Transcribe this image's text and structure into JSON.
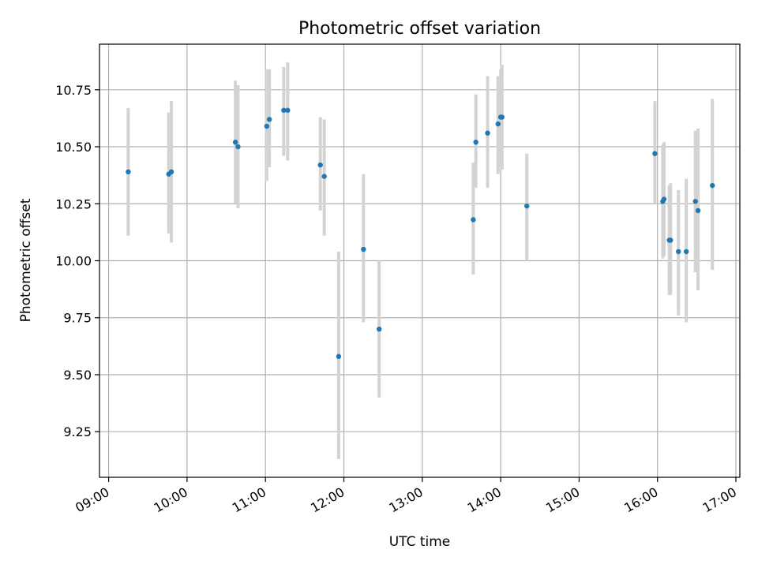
{
  "chart_data": {
    "type": "scatter",
    "title": "Photometric offset variation",
    "xlabel": "UTC time",
    "ylabel": "Photometric offset",
    "xlim": [
      "08:53",
      "17:03"
    ],
    "ylim": [
      9.05,
      10.95
    ],
    "x_ticks": [
      "09:00",
      "10:00",
      "11:00",
      "12:00",
      "13:00",
      "14:00",
      "15:00",
      "16:00",
      "17:00"
    ],
    "y_ticks": [
      9.25,
      9.5,
      9.75,
      10.0,
      10.25,
      10.5,
      10.75
    ],
    "y_tick_labels": [
      "9.25",
      "9.50",
      "9.75",
      "10.00",
      "10.25",
      "10.50",
      "10.75"
    ],
    "grid": true,
    "marker_color": "#1f77b4",
    "errorbar_color": "#d3d3d3",
    "series": [
      {
        "points": [
          {
            "t": "09:15",
            "y": 10.39,
            "lo": 10.11,
            "hi": 10.67
          },
          {
            "t": "09:46",
            "y": 10.38,
            "lo": 10.12,
            "hi": 10.65
          },
          {
            "t": "09:48",
            "y": 10.39,
            "lo": 10.08,
            "hi": 10.7
          },
          {
            "t": "10:37",
            "y": 10.52,
            "lo": 10.25,
            "hi": 10.79
          },
          {
            "t": "10:39",
            "y": 10.5,
            "lo": 10.23,
            "hi": 10.77
          },
          {
            "t": "11:01",
            "y": 10.59,
            "lo": 10.35,
            "hi": 10.84
          },
          {
            "t": "11:03",
            "y": 10.62,
            "lo": 10.41,
            "hi": 10.84
          },
          {
            "t": "11:14",
            "y": 10.66,
            "lo": 10.46,
            "hi": 10.85
          },
          {
            "t": "11:17",
            "y": 10.66,
            "lo": 10.44,
            "hi": 10.87
          },
          {
            "t": "11:42",
            "y": 10.42,
            "lo": 10.22,
            "hi": 10.63
          },
          {
            "t": "11:45",
            "y": 10.37,
            "lo": 10.11,
            "hi": 10.62
          },
          {
            "t": "11:56",
            "y": 9.58,
            "lo": 9.13,
            "hi": 10.04
          },
          {
            "t": "12:15",
            "y": 10.05,
            "lo": 9.73,
            "hi": 10.38
          },
          {
            "t": "12:27",
            "y": 9.7,
            "lo": 9.4,
            "hi": 10.0
          },
          {
            "t": "13:39",
            "y": 10.18,
            "lo": 9.94,
            "hi": 10.43
          },
          {
            "t": "13:41",
            "y": 10.52,
            "lo": 10.32,
            "hi": 10.73
          },
          {
            "t": "13:50",
            "y": 10.56,
            "lo": 10.32,
            "hi": 10.81
          },
          {
            "t": "13:58",
            "y": 10.6,
            "lo": 10.38,
            "hi": 10.81
          },
          {
            "t": "14:00",
            "y": 10.63,
            "lo": 10.41,
            "hi": 10.84
          },
          {
            "t": "14:01",
            "y": 10.63,
            "lo": 10.4,
            "hi": 10.86
          },
          {
            "t": "14:20",
            "y": 10.24,
            "lo": 10.0,
            "hi": 10.47
          },
          {
            "t": "15:58",
            "y": 10.47,
            "lo": 10.25,
            "hi": 10.7
          },
          {
            "t": "16:04",
            "y": 10.26,
            "lo": 10.01,
            "hi": 10.51
          },
          {
            "t": "16:05",
            "y": 10.27,
            "lo": 10.02,
            "hi": 10.52
          },
          {
            "t": "16:09",
            "y": 10.09,
            "lo": 9.85,
            "hi": 10.33
          },
          {
            "t": "16:10",
            "y": 10.09,
            "lo": 9.85,
            "hi": 10.34
          },
          {
            "t": "16:16",
            "y": 10.04,
            "lo": 9.76,
            "hi": 10.31
          },
          {
            "t": "16:22",
            "y": 10.04,
            "lo": 9.73,
            "hi": 10.36
          },
          {
            "t": "16:29",
            "y": 10.26,
            "lo": 9.95,
            "hi": 10.57
          },
          {
            "t": "16:31",
            "y": 10.22,
            "lo": 9.87,
            "hi": 10.58
          },
          {
            "t": "16:42",
            "y": 10.33,
            "lo": 9.96,
            "hi": 10.71
          }
        ]
      }
    ]
  }
}
